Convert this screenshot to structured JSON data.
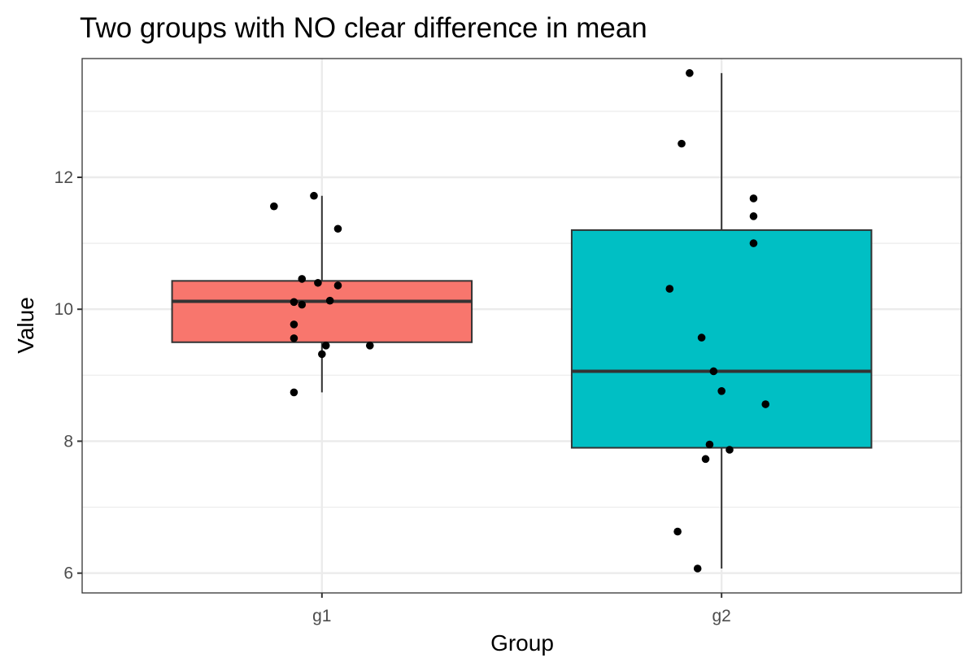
{
  "chart_data": {
    "type": "boxplot",
    "title": "Two groups with NO clear difference in mean",
    "xlabel": "Group",
    "ylabel": "Value",
    "categories": [
      "g1",
      "g2"
    ],
    "ylim": [
      5.7,
      13.8
    ],
    "yticks": [
      6,
      8,
      10,
      12
    ],
    "ytick_labels": [
      "6",
      "8",
      "10",
      "12"
    ],
    "grid": true,
    "legend": "none",
    "fill_colors": [
      "#F8766D",
      "#00BFC4"
    ],
    "boxes": [
      {
        "group": "g1",
        "whisker_low": 8.74,
        "q1": 9.5,
        "median": 10.12,
        "q3": 10.43,
        "whisker_high": 11.72
      },
      {
        "group": "g2",
        "whisker_low": 6.07,
        "q1": 7.9,
        "median": 9.06,
        "q3": 11.2,
        "whisker_high": 13.58
      }
    ],
    "points": [
      {
        "group": "g1",
        "jitter": -0.12,
        "value": 11.56
      },
      {
        "group": "g1",
        "jitter": -0.02,
        "value": 11.72
      },
      {
        "group": "g1",
        "jitter": 0.04,
        "value": 11.22
      },
      {
        "group": "g1",
        "jitter": -0.05,
        "value": 10.46
      },
      {
        "group": "g1",
        "jitter": -0.01,
        "value": 10.4
      },
      {
        "group": "g1",
        "jitter": 0.04,
        "value": 10.36
      },
      {
        "group": "g1",
        "jitter": -0.07,
        "value": 10.11
      },
      {
        "group": "g1",
        "jitter": -0.05,
        "value": 10.07
      },
      {
        "group": "g1",
        "jitter": 0.02,
        "value": 10.13
      },
      {
        "group": "g1",
        "jitter": -0.07,
        "value": 9.77
      },
      {
        "group": "g1",
        "jitter": -0.07,
        "value": 9.56
      },
      {
        "group": "g1",
        "jitter": 0.01,
        "value": 9.45
      },
      {
        "group": "g1",
        "jitter": 0.12,
        "value": 9.45
      },
      {
        "group": "g1",
        "jitter": 0.0,
        "value": 9.32
      },
      {
        "group": "g1",
        "jitter": -0.07,
        "value": 8.74
      },
      {
        "group": "g2",
        "jitter": -0.08,
        "value": 13.58
      },
      {
        "group": "g2",
        "jitter": -0.1,
        "value": 12.51
      },
      {
        "group": "g2",
        "jitter": 0.08,
        "value": 11.68
      },
      {
        "group": "g2",
        "jitter": 0.08,
        "value": 11.41
      },
      {
        "group": "g2",
        "jitter": 0.08,
        "value": 11.0
      },
      {
        "group": "g2",
        "jitter": -0.13,
        "value": 10.31
      },
      {
        "group": "g2",
        "jitter": -0.05,
        "value": 9.57
      },
      {
        "group": "g2",
        "jitter": -0.02,
        "value": 9.06
      },
      {
        "group": "g2",
        "jitter": 0.0,
        "value": 8.76
      },
      {
        "group": "g2",
        "jitter": 0.11,
        "value": 8.56
      },
      {
        "group": "g2",
        "jitter": -0.03,
        "value": 7.95
      },
      {
        "group": "g2",
        "jitter": 0.02,
        "value": 7.87
      },
      {
        "group": "g2",
        "jitter": -0.04,
        "value": 7.73
      },
      {
        "group": "g2",
        "jitter": -0.11,
        "value": 6.63
      },
      {
        "group": "g2",
        "jitter": -0.06,
        "value": 6.07
      }
    ]
  }
}
